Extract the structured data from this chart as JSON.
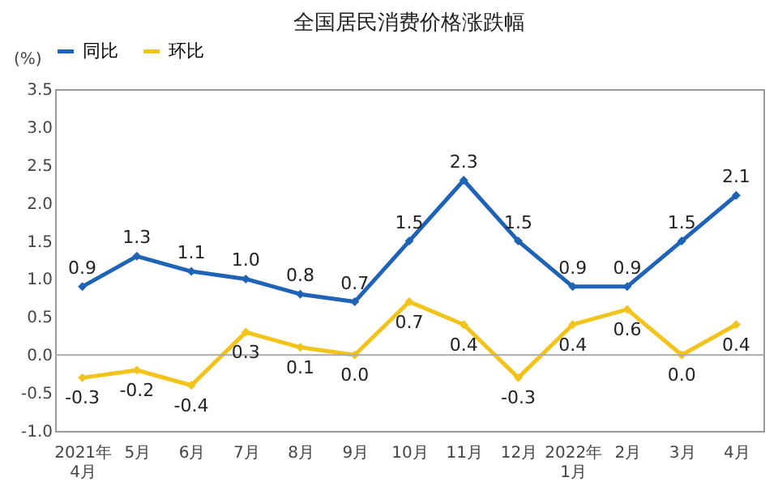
{
  "chart_data": {
    "type": "line",
    "title": "全国居民消费价格涨跌幅",
    "ylabel": "(%)",
    "categories": [
      "2021年\n4月",
      "5月",
      "6月",
      "7月",
      "8月",
      "9月",
      "10月",
      "11月",
      "12月",
      "2022年\n1月",
      "2月",
      "3月",
      "4月"
    ],
    "series": [
      {
        "name": "同比",
        "color": "#1f63b6",
        "values": [
          0.9,
          1.3,
          1.1,
          1.0,
          0.8,
          0.7,
          1.5,
          2.3,
          1.5,
          0.9,
          0.9,
          1.5,
          2.1
        ],
        "value_labels": [
          "0.9",
          "1.3",
          "1.1",
          "1.0",
          "0.8",
          "0.7",
          "1.5",
          "2.3",
          "1.5",
          "0.9",
          "0.9",
          "1.5",
          "2.1"
        ]
      },
      {
        "name": "环比",
        "color": "#f2c31a",
        "values": [
          -0.3,
          -0.2,
          -0.4,
          0.3,
          0.1,
          0.0,
          0.7,
          0.4,
          -0.3,
          0.4,
          0.6,
          0.0,
          0.4
        ],
        "value_labels": [
          "-0.3",
          "-0.2",
          "-0.4",
          "0.3",
          "0.1",
          "0.0",
          "0.7",
          "0.4",
          "-0.3",
          "0.4",
          "0.6",
          "0.0",
          "0.4"
        ]
      }
    ],
    "ylim": [
      -1.0,
      3.5
    ],
    "yticks": [
      {
        "value": -1,
        "label": "-1.0"
      },
      -0.5,
      {
        "value": 0,
        "label": "0.0"
      },
      0.5,
      {
        "value": 1,
        "label": "1.0"
      },
      1.5,
      {
        "value": 2,
        "label": "2.0"
      },
      2.5,
      {
        "value": 3,
        "label": "3.0"
      },
      3.5
    ],
    "ref_lines": [
      {
        "axis": "y",
        "value": 0,
        "color": "#aaaaaa"
      }
    ],
    "grid": false,
    "legend": "top",
    "marker": "diamond",
    "line_style": "solid"
  }
}
